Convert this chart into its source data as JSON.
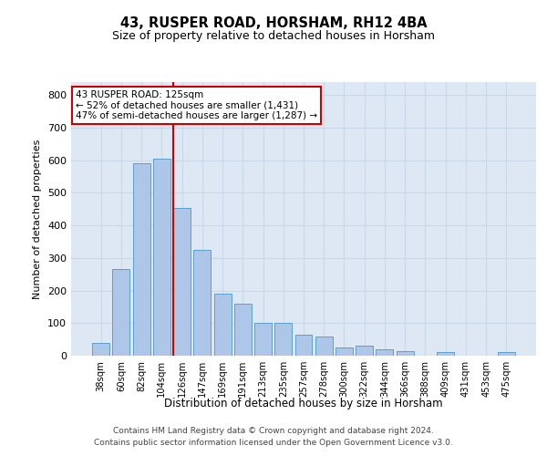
{
  "title": "43, RUSPER ROAD, HORSHAM, RH12 4BA",
  "subtitle": "Size of property relative to detached houses in Horsham",
  "xlabel": "Distribution of detached houses by size in Horsham",
  "ylabel": "Number of detached properties",
  "categories": [
    "38sqm",
    "60sqm",
    "82sqm",
    "104sqm",
    "126sqm",
    "147sqm",
    "169sqm",
    "191sqm",
    "213sqm",
    "235sqm",
    "257sqm",
    "278sqm",
    "300sqm",
    "322sqm",
    "344sqm",
    "366sqm",
    "388sqm",
    "409sqm",
    "431sqm",
    "453sqm",
    "475sqm"
  ],
  "values": [
    40,
    265,
    590,
    605,
    455,
    325,
    190,
    160,
    100,
    100,
    65,
    60,
    25,
    30,
    20,
    15,
    0,
    10,
    0,
    0,
    10
  ],
  "bar_color": "#aec6e8",
  "bar_edge_color": "#5a9fd4",
  "annotation_text": "43 RUSPER ROAD: 125sqm\n← 52% of detached houses are smaller (1,431)\n47% of semi-detached houses are larger (1,287) →",
  "annotation_box_color": "#ffffff",
  "annotation_border_color": "#cc0000",
  "vline_color": "#cc0000",
  "grid_color": "#c8d8e8",
  "background_color": "#dde8f4",
  "footer_line1": "Contains HM Land Registry data © Crown copyright and database right 2024.",
  "footer_line2": "Contains public sector information licensed under the Open Government Licence v3.0.",
  "ylim": [
    0,
    840
  ],
  "yticks": [
    0,
    100,
    200,
    300,
    400,
    500,
    600,
    700,
    800
  ],
  "vline_bar_index": 4
}
